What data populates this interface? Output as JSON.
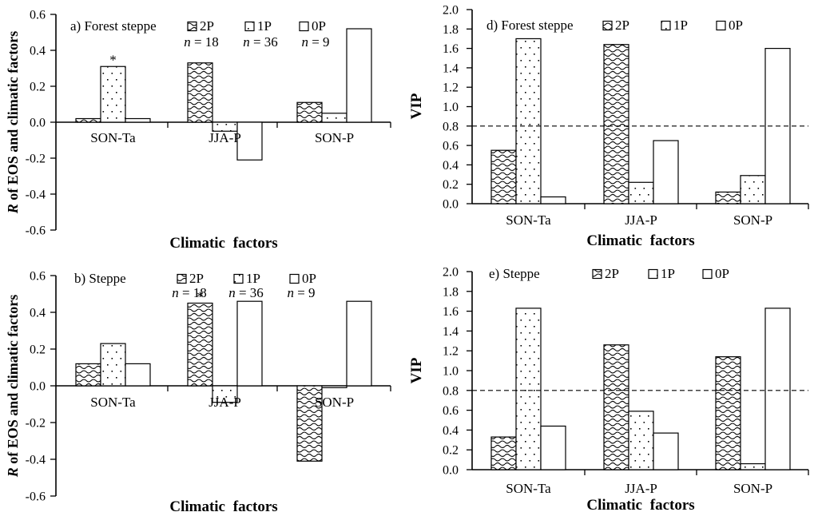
{
  "figure": {
    "background": "#ffffff",
    "ink": "#000000",
    "bar_fill": "#ffffff"
  },
  "chart_data": [
    {
      "id": "a",
      "type": "bar",
      "panel_label": "a) Forest steppe",
      "xlabel": "Climatic factors",
      "ylabel": "R of EOS and climatic factors",
      "ylabel_parts": [
        {
          "text": "R",
          "italic": true
        },
        {
          "text": " of EOS and climatic factors",
          "italic": false
        }
      ],
      "ylim": [
        -0.6,
        0.6
      ],
      "ytick_step": 0.2,
      "categories": [
        "SON-Ta",
        "JJA-P",
        "SON-P"
      ],
      "series": [
        {
          "name": "2P",
          "pattern": "wave",
          "n_label": "n = 18",
          "values": [
            0.02,
            0.33,
            0.11
          ]
        },
        {
          "name": "1P",
          "pattern": "dots",
          "n_label": "n = 36",
          "values": [
            0.31,
            -0.05,
            0.05
          ]
        },
        {
          "name": "0P",
          "pattern": "plain",
          "n_label": "n = 9",
          "values": [
            0.02,
            -0.21,
            0.52
          ]
        }
      ],
      "annotations": [
        {
          "text": "*",
          "series": "1P",
          "category": "SON-Ta"
        }
      ],
      "threshold": null,
      "grid": false,
      "legend_position": "top-inside"
    },
    {
      "id": "d",
      "type": "bar",
      "panel_label": "d) Forest steppe",
      "xlabel": "Climatic factors",
      "ylabel": "VIP",
      "ylabel_parts": [
        {
          "text": "VIP",
          "italic": false
        }
      ],
      "ylim": [
        0.0,
        2.0
      ],
      "ytick_step": 0.2,
      "categories": [
        "SON-Ta",
        "JJA-P",
        "SON-P"
      ],
      "series": [
        {
          "name": "2P",
          "pattern": "wave",
          "values": [
            0.55,
            1.64,
            0.12
          ]
        },
        {
          "name": "1P",
          "pattern": "dots",
          "values": [
            1.7,
            0.22,
            0.29
          ]
        },
        {
          "name": "0P",
          "pattern": "plain",
          "values": [
            0.07,
            0.65,
            1.6
          ]
        }
      ],
      "annotations": [],
      "threshold": 0.8,
      "grid": false,
      "legend_position": "top-inside"
    },
    {
      "id": "b",
      "type": "bar",
      "panel_label": "b) Steppe",
      "xlabel": "Climatic factors",
      "ylabel": "R of EOS and climatic factors",
      "ylabel_parts": [
        {
          "text": "R",
          "italic": true
        },
        {
          "text": " of EOS and climatic factors",
          "italic": false
        }
      ],
      "ylim": [
        -0.6,
        0.6
      ],
      "ytick_step": 0.2,
      "categories": [
        "SON-Ta",
        "JJA-P",
        "SON-P"
      ],
      "series": [
        {
          "name": "2P",
          "pattern": "wave",
          "n_label": "n = 18",
          "values": [
            0.12,
            0.45,
            -0.41
          ]
        },
        {
          "name": "1P",
          "pattern": "dots",
          "n_label": "n = 36",
          "values": [
            0.23,
            -0.09,
            -0.01
          ]
        },
        {
          "name": "0P",
          "pattern": "plain",
          "n_label": "n = 9",
          "values": [
            0.12,
            0.46,
            0.46
          ]
        }
      ],
      "annotations": [
        {
          "text": "*",
          "series": "2P",
          "category": "JJA-P"
        }
      ],
      "threshold": null,
      "grid": false,
      "legend_position": "top-inside"
    },
    {
      "id": "e",
      "type": "bar",
      "panel_label": "e) Steppe",
      "xlabel": "Climatic factors",
      "ylabel": "VIP",
      "ylabel_parts": [
        {
          "text": "VIP",
          "italic": false
        }
      ],
      "ylim": [
        0.0,
        2.0
      ],
      "ytick_step": 0.2,
      "categories": [
        "SON-Ta",
        "JJA-P",
        "SON-P"
      ],
      "series": [
        {
          "name": "2P",
          "pattern": "wave",
          "values": [
            0.33,
            1.26,
            1.14
          ]
        },
        {
          "name": "1P",
          "pattern": "dots",
          "values": [
            1.63,
            0.59,
            0.06
          ]
        },
        {
          "name": "0P",
          "pattern": "plain",
          "values": [
            0.44,
            0.37,
            1.63
          ]
        }
      ],
      "annotations": [],
      "threshold": 0.8,
      "grid": false,
      "legend_position": "top-inside"
    }
  ]
}
